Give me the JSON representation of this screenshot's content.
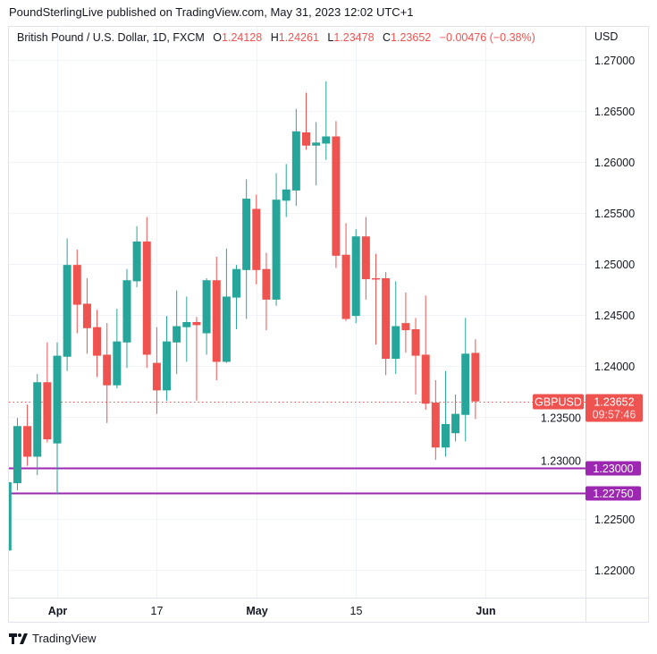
{
  "publish_line": "PoundSterlingLive published on TradingView.com, May 31, 2023 12:02 UTC+1",
  "legend": {
    "symbol_desc": "British Pound / U.S. Dollar, 1D, FXCM",
    "o_label": "O",
    "o": "1.24128",
    "h_label": "H",
    "h": "1.24261",
    "l_label": "L",
    "l": "1.23478",
    "c_label": "C",
    "c": "1.23652",
    "change": "−0.00476 (−0.38%)"
  },
  "currency": "USD",
  "footer": {
    "brand": "TradingView",
    "logo_icon": "tradingview-logo-icon"
  },
  "colors": {
    "up": "#26a69a",
    "down": "#ef5350",
    "level": "#9c27b0",
    "grid": "#f0f3fa"
  },
  "chart_data": {
    "type": "candlestick",
    "symbol": "GBPUSD",
    "ylim": [
      1.2155,
      1.2725
    ],
    "y_ticks": [
      "1.27000",
      "1.26500",
      "1.26000",
      "1.25500",
      "1.25000",
      "1.24500",
      "1.24000",
      "1.23500",
      "1.23000",
      "1.22500",
      "1.22000"
    ],
    "x_ticks": [
      {
        "label": "Apr",
        "index": 5,
        "bold": true
      },
      {
        "label": "17",
        "index": 15,
        "bold": false
      },
      {
        "label": "May",
        "index": 25,
        "bold": true
      },
      {
        "label": "15",
        "index": 35,
        "bold": false
      },
      {
        "label": "Jun",
        "index": 48,
        "bold": true
      }
    ],
    "ohlc": [
      [
        1.2219,
        1.2286,
        1.2219,
        1.2286
      ],
      [
        1.2285,
        1.2349,
        1.2278,
        1.2341
      ],
      [
        1.2341,
        1.2362,
        1.2302,
        1.2311
      ],
      [
        1.2311,
        1.2392,
        1.2293,
        1.2384
      ],
      [
        1.2384,
        1.2423,
        1.2325,
        1.2328
      ],
      [
        1.2324,
        1.2423,
        1.2274,
        1.241
      ],
      [
        1.2409,
        1.2525,
        1.2395,
        1.2499
      ],
      [
        1.2499,
        1.2514,
        1.2432,
        1.246
      ],
      [
        1.2461,
        1.2486,
        1.2412,
        1.2437
      ],
      [
        1.2438,
        1.2455,
        1.2389,
        1.241
      ],
      [
        1.2411,
        1.2442,
        1.2344,
        1.2381
      ],
      [
        1.2381,
        1.2456,
        1.2378,
        1.2424
      ],
      [
        1.2423,
        1.2495,
        1.2398,
        1.2484
      ],
      [
        1.2483,
        1.2537,
        1.2477,
        1.2522
      ],
      [
        1.2522,
        1.2546,
        1.2398,
        1.2411
      ],
      [
        1.2403,
        1.2438,
        1.2353,
        1.2376
      ],
      [
        1.2376,
        1.2449,
        1.2366,
        1.2424
      ],
      [
        1.2423,
        1.2474,
        1.2392,
        1.2439
      ],
      [
        1.2438,
        1.2468,
        1.2404,
        1.2443
      ],
      [
        1.2443,
        1.2448,
        1.2366,
        1.244
      ],
      [
        1.2432,
        1.2486,
        1.2411,
        1.2484
      ],
      [
        1.2484,
        1.2507,
        1.2386,
        1.2404
      ],
      [
        1.2404,
        1.2515,
        1.2403,
        1.2468
      ],
      [
        1.2467,
        1.2499,
        1.2436,
        1.2495
      ],
      [
        1.2494,
        1.2583,
        1.2446,
        1.2564
      ],
      [
        1.2554,
        1.2568,
        1.248,
        1.2494
      ],
      [
        1.2495,
        1.2511,
        1.2435,
        1.2465
      ],
      [
        1.2465,
        1.2589,
        1.2459,
        1.2563
      ],
      [
        1.2562,
        1.2598,
        1.2546,
        1.2573
      ],
      [
        1.2572,
        1.2652,
        1.2557,
        1.263
      ],
      [
        1.2629,
        1.2668,
        1.2612,
        1.2616
      ],
      [
        1.2616,
        1.2639,
        1.2577,
        1.2619
      ],
      [
        1.2618,
        1.2679,
        1.2602,
        1.2625
      ],
      [
        1.2625,
        1.264,
        1.2496,
        1.2508
      ],
      [
        1.2509,
        1.254,
        1.2444,
        1.2446
      ],
      [
        1.2449,
        1.2534,
        1.2442,
        1.2527
      ],
      [
        1.2527,
        1.2546,
        1.2465,
        1.2485
      ],
      [
        1.2486,
        1.251,
        1.2421,
        1.2485
      ],
      [
        1.2486,
        1.2492,
        1.2391,
        1.2407
      ],
      [
        1.2407,
        1.2483,
        1.2392,
        1.2439
      ],
      [
        1.2442,
        1.2472,
        1.2413,
        1.2435
      ],
      [
        1.2436,
        1.2447,
        1.2372,
        1.241
      ],
      [
        1.2411,
        1.2469,
        1.2357,
        1.2363
      ],
      [
        1.2364,
        1.2386,
        1.2308,
        1.232
      ],
      [
        1.232,
        1.2395,
        1.2311,
        1.2343
      ],
      [
        1.2334,
        1.2372,
        1.2326,
        1.2353
      ],
      [
        1.2352,
        1.2447,
        1.2326,
        1.2412
      ],
      [
        1.24128,
        1.24261,
        1.23478,
        1.23652
      ]
    ],
    "last_price": {
      "value": 1.23652,
      "label": "1.23652",
      "countdown": "09:57:46",
      "symbol_label": "GBPUSD"
    },
    "levels": [
      {
        "value": 1.23,
        "label": "1.23000"
      },
      {
        "value": 1.2275,
        "label": "1.22750"
      }
    ]
  }
}
